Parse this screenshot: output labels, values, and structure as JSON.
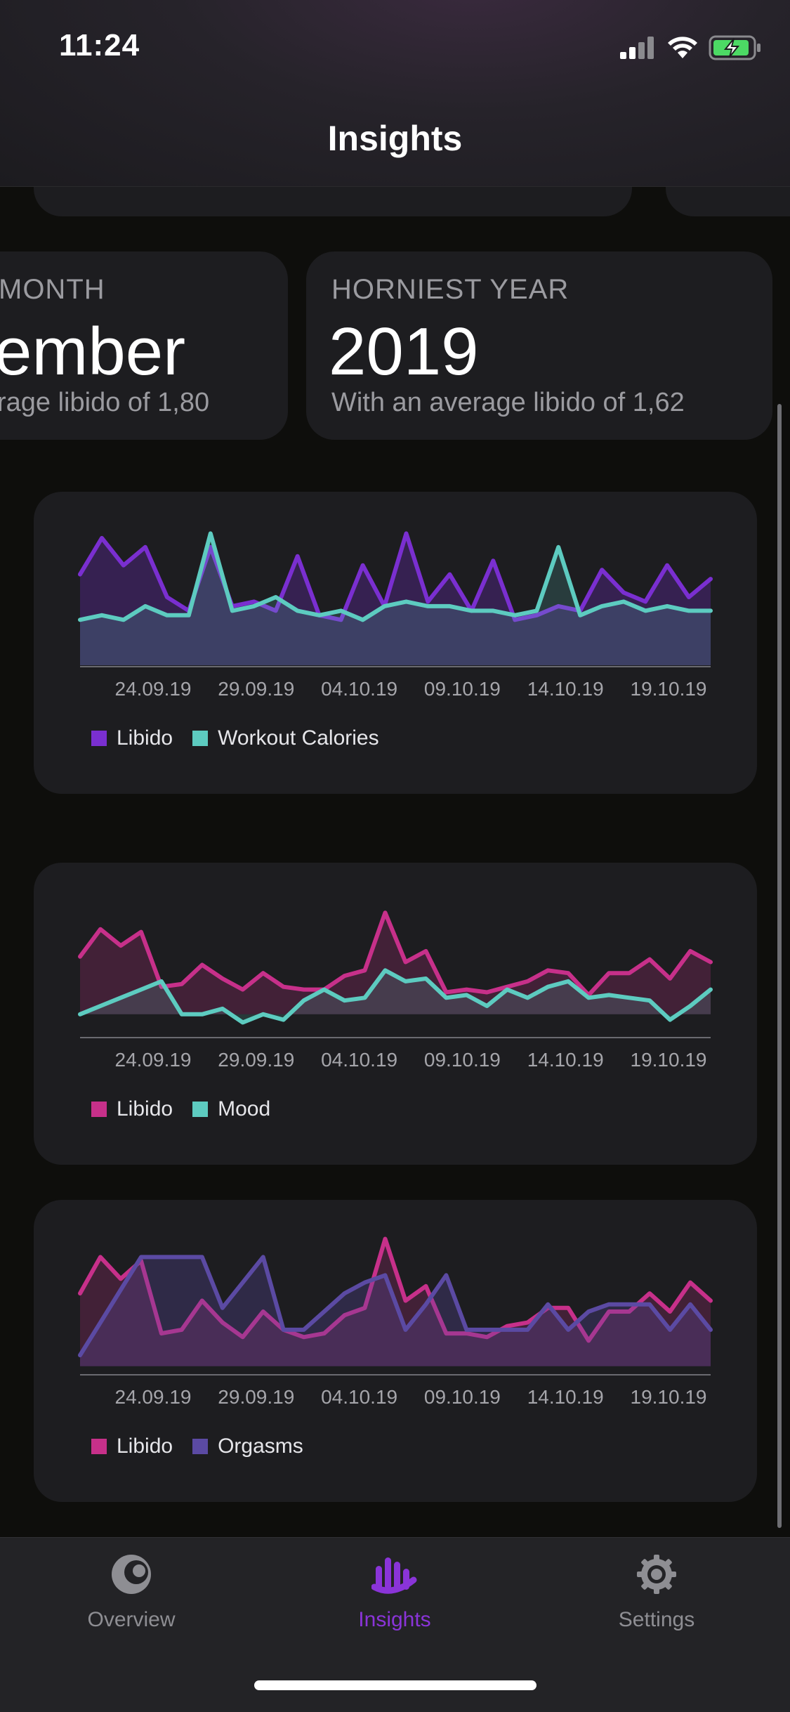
{
  "status": {
    "time": "11:24"
  },
  "nav": {
    "title": "Insights"
  },
  "stats": [
    {
      "label": "MONTH",
      "value": "ember",
      "sub": "rage libido of 1,80"
    },
    {
      "label": "HORNIEST YEAR",
      "value": "2019",
      "sub": "With an average libido of 1,62"
    }
  ],
  "charts": [
    {
      "x_ticks": [
        "24.09.19",
        "29.09.19",
        "04.10.19",
        "09.10.19",
        "14.10.19",
        "19.10.19"
      ],
      "legend": [
        {
          "name": "Libido",
          "color": "#7a2fd0"
        },
        {
          "name": "Workout Calories",
          "color": "#5dcbc0"
        }
      ],
      "chart_data": {
        "type": "line",
        "x": [
          "21.09.19",
          "22.09.19",
          "23.09.19",
          "24.09.19",
          "25.09.19",
          "26.09.19",
          "27.09.19",
          "28.09.19",
          "29.09.19",
          "30.09.19",
          "01.10.19",
          "02.10.19",
          "03.10.19",
          "04.10.19",
          "05.10.19",
          "06.10.19",
          "07.10.19",
          "08.10.19",
          "09.10.19",
          "10.10.19",
          "11.10.19",
          "12.10.19",
          "13.10.19",
          "14.10.19",
          "15.10.19",
          "16.10.19",
          "17.10.19",
          "18.10.19",
          "19.10.19",
          "20.10.19"
        ],
        "series": [
          {
            "name": "Libido",
            "values": [
              2.0,
              2.8,
              2.2,
              2.6,
              1.5,
              1.2,
              2.6,
              1.3,
              1.4,
              1.2,
              2.4,
              1.1,
              1.0,
              2.2,
              1.3,
              2.9,
              1.4,
              2.0,
              1.2,
              2.3,
              1.0,
              1.1,
              1.3,
              1.2,
              2.1,
              1.6,
              1.4,
              2.2,
              1.5,
              1.9
            ]
          },
          {
            "name": "Workout Calories",
            "values": [
              1.0,
              1.1,
              1.0,
              1.3,
              1.1,
              1.1,
              2.9,
              1.2,
              1.3,
              1.5,
              1.2,
              1.1,
              1.2,
              1.0,
              1.3,
              1.4,
              1.3,
              1.3,
              1.2,
              1.2,
              1.1,
              1.2,
              2.6,
              1.1,
              1.3,
              1.4,
              1.2,
              1.3,
              1.2,
              1.2
            ]
          }
        ],
        "ylim": [
          0,
          3.2
        ]
      }
    },
    {
      "x_ticks": [
        "24.09.19",
        "29.09.19",
        "04.10.19",
        "09.10.19",
        "14.10.19",
        "19.10.19"
      ],
      "legend": [
        {
          "name": "Libido",
          "color": "#c7308a"
        },
        {
          "name": "Mood",
          "color": "#5dcbc0"
        }
      ],
      "chart_data": {
        "type": "line",
        "x": [
          "21.09.19",
          "22.09.19",
          "23.09.19",
          "24.09.19",
          "25.09.19",
          "26.09.19",
          "27.09.19",
          "28.09.19",
          "29.09.19",
          "30.09.19",
          "01.10.19",
          "02.10.19",
          "03.10.19",
          "04.10.19",
          "05.10.19",
          "06.10.19",
          "07.10.19",
          "08.10.19",
          "09.10.19",
          "10.10.19",
          "11.10.19",
          "12.10.19",
          "13.10.19",
          "14.10.19",
          "15.10.19",
          "16.10.19",
          "17.10.19",
          "18.10.19",
          "19.10.19",
          "20.10.19",
          "21.10.19",
          "22.10.19"
        ],
        "series": [
          {
            "name": "Libido",
            "values": [
              2.1,
              3.1,
              2.5,
              3.0,
              1.0,
              1.1,
              1.8,
              1.3,
              0.9,
              1.5,
              1.0,
              0.9,
              0.9,
              1.4,
              1.6,
              3.7,
              1.9,
              2.3,
              0.8,
              0.9,
              0.8,
              1.0,
              1.2,
              1.6,
              1.5,
              0.7,
              1.5,
              1.5,
              2.0,
              1.3,
              2.3,
              1.9
            ]
          },
          {
            "name": "Mood",
            "values": [
              0.0,
              0.3,
              0.6,
              0.9,
              1.2,
              0.0,
              0.0,
              0.2,
              -0.3,
              0.0,
              -0.2,
              0.5,
              0.9,
              0.5,
              0.6,
              1.6,
              1.2,
              1.3,
              0.6,
              0.7,
              0.3,
              0.9,
              0.6,
              1.0,
              1.2,
              0.6,
              0.7,
              0.6,
              0.5,
              -0.2,
              0.3,
              0.9
            ]
          }
        ],
        "ylim": [
          -0.8,
          4.5
        ]
      }
    },
    {
      "x_ticks": [
        "24.09.19",
        "29.09.19",
        "04.10.19",
        "09.10.19",
        "14.10.19",
        "19.10.19"
      ],
      "legend": [
        {
          "name": "Libido",
          "color": "#c7308a"
        },
        {
          "name": "Orgasms",
          "color": "#5b4aa3"
        }
      ],
      "chart_data": {
        "type": "area",
        "x": [
          "21.09.19",
          "22.09.19",
          "23.09.19",
          "24.09.19",
          "25.09.19",
          "26.09.19",
          "27.09.19",
          "28.09.19",
          "29.09.19",
          "30.09.19",
          "01.10.19",
          "02.10.19",
          "03.10.19",
          "04.10.19",
          "05.10.19",
          "06.10.19",
          "07.10.19",
          "08.10.19",
          "09.10.19",
          "10.10.19",
          "11.10.19",
          "12.10.19",
          "13.10.19",
          "14.10.19",
          "15.10.19",
          "16.10.19",
          "17.10.19",
          "18.10.19",
          "19.10.19",
          "20.10.19",
          "21.10.19",
          "22.10.19"
        ],
        "series": [
          {
            "name": "Libido",
            "values": [
              2.0,
              3.0,
              2.4,
              2.9,
              0.9,
              1.0,
              1.8,
              1.2,
              0.8,
              1.5,
              1.0,
              0.8,
              0.9,
              1.4,
              1.6,
              3.5,
              1.8,
              2.2,
              0.9,
              0.9,
              0.8,
              1.1,
              1.2,
              1.6,
              1.6,
              0.7,
              1.5,
              1.5,
              2.0,
              1.5,
              2.3,
              1.8
            ]
          },
          {
            "name": "Orgasms",
            "values": [
              0.3,
              1.2,
              2.1,
              3.0,
              3.0,
              3.0,
              3.0,
              1.6,
              2.3,
              3.0,
              1.0,
              1.0,
              1.5,
              2.0,
              2.3,
              2.5,
              1.0,
              1.7,
              2.5,
              1.0,
              1.0,
              1.0,
              1.0,
              1.7,
              1.0,
              1.5,
              1.7,
              1.7,
              1.7,
              1.0,
              1.7,
              1.0
            ]
          }
        ],
        "ylim": [
          -0.2,
          3.8
        ]
      }
    }
  ],
  "tabs": [
    {
      "label": "Overview",
      "icon": "overview-icon"
    },
    {
      "label": "Insights",
      "icon": "insights-icon",
      "active": true
    },
    {
      "label": "Settings",
      "icon": "gear-icon"
    }
  ]
}
